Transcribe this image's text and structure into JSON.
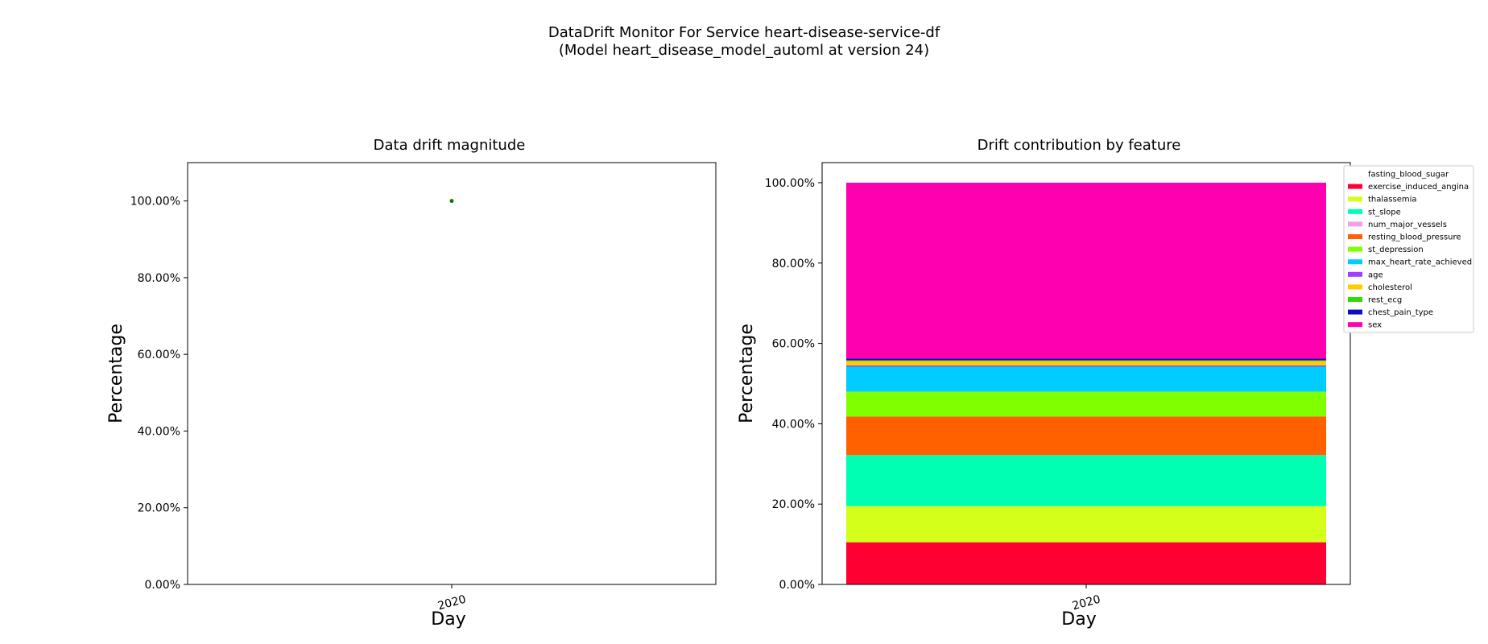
{
  "suptitle": {
    "line1": "DataDrift Monitor For Service heart-disease-service-df",
    "line2": "(Model heart_disease_model_automl at version 24)"
  },
  "chart_data": [
    {
      "type": "scatter",
      "title": "Data drift magnitude",
      "xlabel": "Day",
      "ylabel": "Percentage",
      "x": [
        "2020"
      ],
      "y": [
        100.0
      ],
      "ylim": [
        0,
        110
      ],
      "yticks": [
        "0.00%",
        "20.00%",
        "40.00%",
        "60.00%",
        "80.00%",
        "100.00%"
      ],
      "xticks": [
        "2020"
      ],
      "point_color": "#008000",
      "grid": false
    },
    {
      "type": "bar",
      "stacked": true,
      "title": "Drift contribution by feature",
      "xlabel": "Day",
      "ylabel": "Percentage",
      "categories": [
        "2020"
      ],
      "ylim": [
        0,
        105
      ],
      "yticks": [
        "0.00%",
        "20.00%",
        "40.00%",
        "60.00%",
        "80.00%",
        "100.00%"
      ],
      "xticks": [
        "2020"
      ],
      "legend_position": "outside-top-right",
      "grid": false,
      "series": [
        {
          "name": "fasting_blood_sugar",
          "values": [
            0.0
          ],
          "color": "#ffffff"
        },
        {
          "name": "exercise_induced_angina",
          "values": [
            10.5
          ],
          "color": "#ff0033"
        },
        {
          "name": "thalassemia",
          "values": [
            9.0
          ],
          "color": "#d4ff1a"
        },
        {
          "name": "st_slope",
          "values": [
            12.7
          ],
          "color": "#00ffb3"
        },
        {
          "name": "num_major_vessels",
          "values": [
            0.0
          ],
          "color": "#f0a0e8"
        },
        {
          "name": "resting_blood_pressure",
          "values": [
            9.6
          ],
          "color": "#ff6000"
        },
        {
          "name": "st_depression",
          "values": [
            6.2
          ],
          "color": "#80ff00"
        },
        {
          "name": "max_heart_rate_achieved",
          "values": [
            6.2
          ],
          "color": "#00ccff"
        },
        {
          "name": "age",
          "values": [
            0.3
          ],
          "color": "#a040ff"
        },
        {
          "name": "cholesterol",
          "values": [
            1.1
          ],
          "color": "#ffcc00"
        },
        {
          "name": "rest_ecg",
          "values": [
            0.2
          ],
          "color": "#30dd00"
        },
        {
          "name": "chest_pain_type",
          "values": [
            0.4
          ],
          "color": "#0a10c0"
        },
        {
          "name": "sex",
          "values": [
            43.8
          ],
          "color": "#ff00b0"
        }
      ]
    }
  ]
}
